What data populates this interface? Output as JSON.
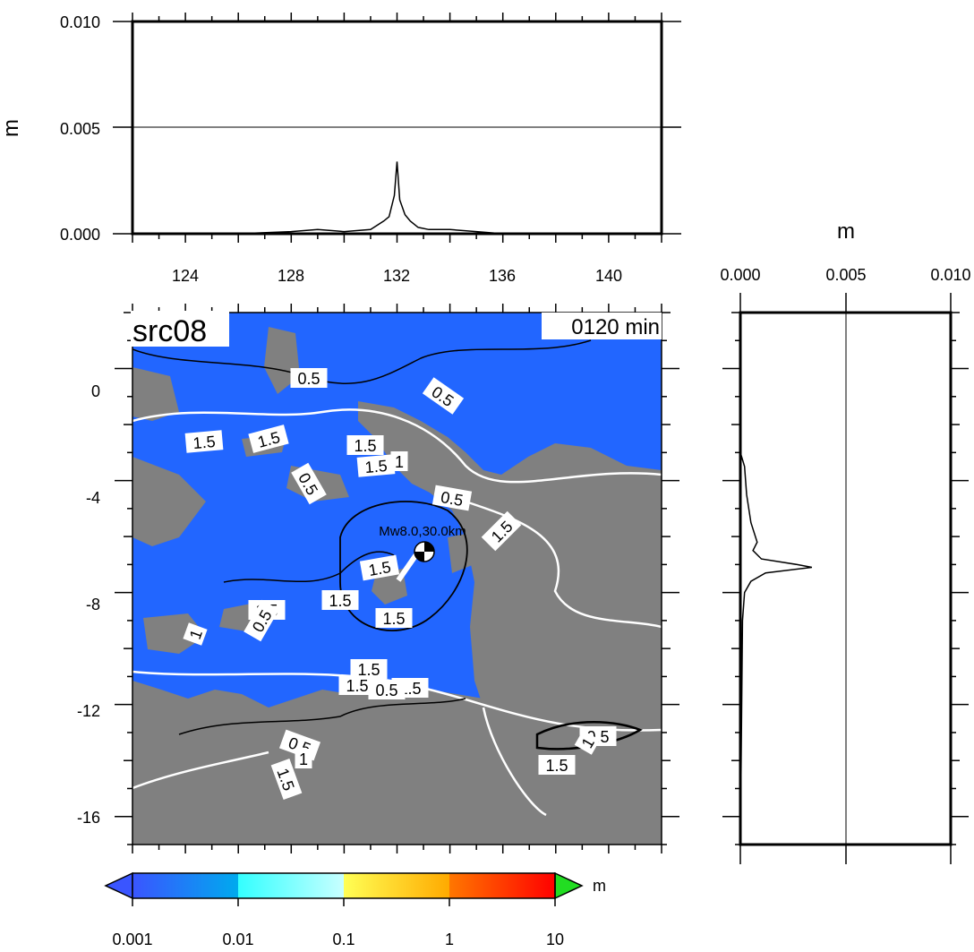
{
  "top_panel": {
    "ylabel": "m",
    "yticks": [
      "0.000",
      "0.005",
      "0.010"
    ],
    "yrange": [
      0,
      0.01
    ],
    "xticks": [
      "124",
      "128",
      "132",
      "136",
      "140"
    ],
    "xrange": [
      122,
      142
    ],
    "profile": [
      [
        122,
        0
      ],
      [
        126,
        0
      ],
      [
        128,
        0.0001
      ],
      [
        129,
        0.0002
      ],
      [
        130,
        0.0001
      ],
      [
        131,
        0.0002
      ],
      [
        131.5,
        0.0006
      ],
      [
        131.7,
        0.0008
      ],
      [
        131.9,
        0.0018
      ],
      [
        132.0,
        0.0034
      ],
      [
        132.1,
        0.0016
      ],
      [
        132.3,
        0.0009
      ],
      [
        132.5,
        0.0006
      ],
      [
        132.8,
        0.0003
      ],
      [
        133.2,
        0.0002
      ],
      [
        134,
        0.0002
      ],
      [
        135,
        0.0001
      ],
      [
        136,
        0
      ],
      [
        142,
        0
      ]
    ]
  },
  "right_panel": {
    "xlabel": "m",
    "xticks": [
      "0.000",
      "0.005",
      "0.010"
    ],
    "xrange": [
      0,
      0.01
    ],
    "profile": [
      [
        1.6,
        0
      ],
      [
        -3,
        0
      ],
      [
        -3.5,
        0.0002
      ],
      [
        -4.5,
        0.0003
      ],
      [
        -5.5,
        0.0005
      ],
      [
        -6.2,
        0.0008
      ],
      [
        -6.5,
        0.0006
      ],
      [
        -6.8,
        0.001
      ],
      [
        -7.0,
        0.0027
      ],
      [
        -7.1,
        0.0034
      ],
      [
        -7.3,
        0.0012
      ],
      [
        -7.6,
        0.0005
      ],
      [
        -8,
        0.0002
      ],
      [
        -9,
        0.0001
      ],
      [
        -17,
        0
      ]
    ]
  },
  "map": {
    "title": "src08",
    "time_label": "0120 min",
    "event_label": "Mw8.0,30.0km",
    "yticks": [
      "0",
      "-4",
      "-8",
      "-12",
      "-16"
    ],
    "lat_range": [
      -17,
      2
    ],
    "lon_range": [
      122,
      142
    ],
    "ocean_color": "#2266ff",
    "land_color": "#808080",
    "contour_labels": [
      "0.5",
      "0.5",
      "1.5",
      "1.5",
      "1.5",
      "1.5",
      "1",
      "0.5",
      "0.5",
      "1.5",
      "1.5",
      "1.5",
      "1.5",
      "0.5",
      "1",
      "1.5",
      "1.5",
      "1.5",
      "0.5",
      "1",
      "1.5",
      "0.5",
      "1",
      "1.5",
      "0.5",
      "1.5"
    ]
  },
  "colorbar": {
    "unit": "m",
    "tick_labels": [
      "0.001",
      "0.01",
      "0.1",
      "1",
      "10"
    ],
    "colors": [
      "#3a55ff",
      "#00aaee",
      "#33ffff",
      "#ffff55",
      "#ffaa00",
      "#ff4400",
      "#ff0000",
      "#22dd22"
    ]
  }
}
